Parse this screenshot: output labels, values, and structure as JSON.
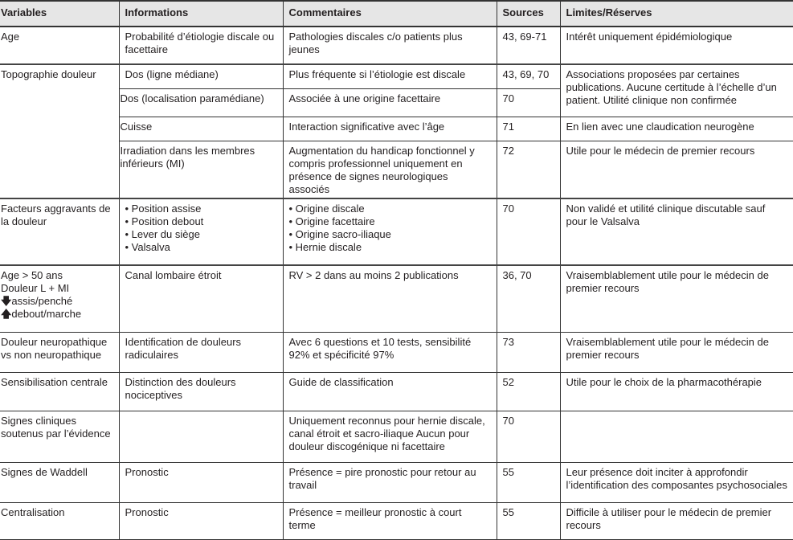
{
  "headers": [
    "Variables",
    "Informations",
    "Commentaires",
    "Sources",
    "Limites/Réserves"
  ],
  "rows": {
    "age": {
      "variable": "Age",
      "info": "Probabilité d’étiologie discale ou facettaire",
      "comment": "Pathologies discales c/o patients plus jeunes",
      "sources": "43, 69-71",
      "limits": "Intérêt uniquement épidémiologique"
    },
    "topo": {
      "variable": "Topographie douleur",
      "limits": "Associations proposées par certaines publications. Aucune certitude à l’échelle d’un patient. Utilité clinique non confirmée",
      "sub": [
        {
          "info": "Dos (ligne médiane)",
          "comment": "Plus fréquente si l’étiologie est discale",
          "sources": "43, 69, 70"
        },
        {
          "info": "Dos (localisation paramédiane)",
          "comment": "Associée à une origine facettaire",
          "sources": "70"
        },
        {
          "info": "Cuisse",
          "comment": "Interaction significative avec l’âge",
          "sources": "71",
          "limits": "En lien avec une claudication neurogène"
        },
        {
          "info": "Irradiation dans les membres inférieurs (MI)",
          "comment": "Augmentation du handicap fonctionnel y compris professionnel uniquement en présence de signes neurologiques associés",
          "sources": "72",
          "limits": "Utile pour le médecin de premier recours"
        }
      ]
    },
    "facteurs": {
      "variable": "Facteurs aggravants de la douleur",
      "info": [
        "Position assise",
        "Position debout",
        "Lever du siège",
        "Valsalva"
      ],
      "comment": [
        "Origine discale",
        "Origine facettaire",
        "Origine sacro-iliaque",
        "Hernie discale"
      ],
      "sources": "70",
      "limits": "Non validé et utilité clinique discutable sauf pour le Valsalva"
    },
    "canal": {
      "variable": [
        "Age > 50 ans",
        "Douleur L + MI",
        "assis/penché",
        "debout/marche"
      ],
      "info": "Canal lombaire étroit",
      "comment": "RV > 2 dans au moins 2 publications",
      "sources": "36, 70",
      "limits": "Vraisemblablement utile pour le médecin de premier recours"
    },
    "neuro": {
      "variable": "Douleur neuropathique vs non neuropathique",
      "info": "Identification de douleurs radiculaires",
      "comment": "Avec 6 questions et 10 tests, sensibilité 92% et spécificité 97%",
      "sources": "73",
      "limits": "Vraisemblablement utile pour le médecin de premier recours"
    },
    "sensib": {
      "variable": "Sensibilisation centrale",
      "info": "Distinction des douleurs nociceptives",
      "comment": "Guide de classification",
      "sources": "52",
      "limits": "Utile pour le choix de la pharmacothérapie"
    },
    "signes": {
      "variable": "Signes cliniques soutenus par l’évidence",
      "info": "",
      "comment": "Uniquement reconnus pour hernie discale, canal étroit et sacro-iliaque Aucun pour douleur discogénique ni facettaire",
      "sources": "70",
      "limits": ""
    },
    "waddell": {
      "variable": "Signes de Waddell",
      "info": "Pronostic",
      "comment": "Présence = pire pronostic pour retour au travail",
      "sources": "55",
      "limits": "Leur présence doit inciter à approfondir l’identification des composantes psychosociales"
    },
    "central": {
      "variable": "Centralisation",
      "info": "Pronostic",
      "comment": "Présence = meilleur pronostic à court terme",
      "sources": "55",
      "limits": "Difficile à utiliser pour le médecin de premier recours"
    }
  }
}
